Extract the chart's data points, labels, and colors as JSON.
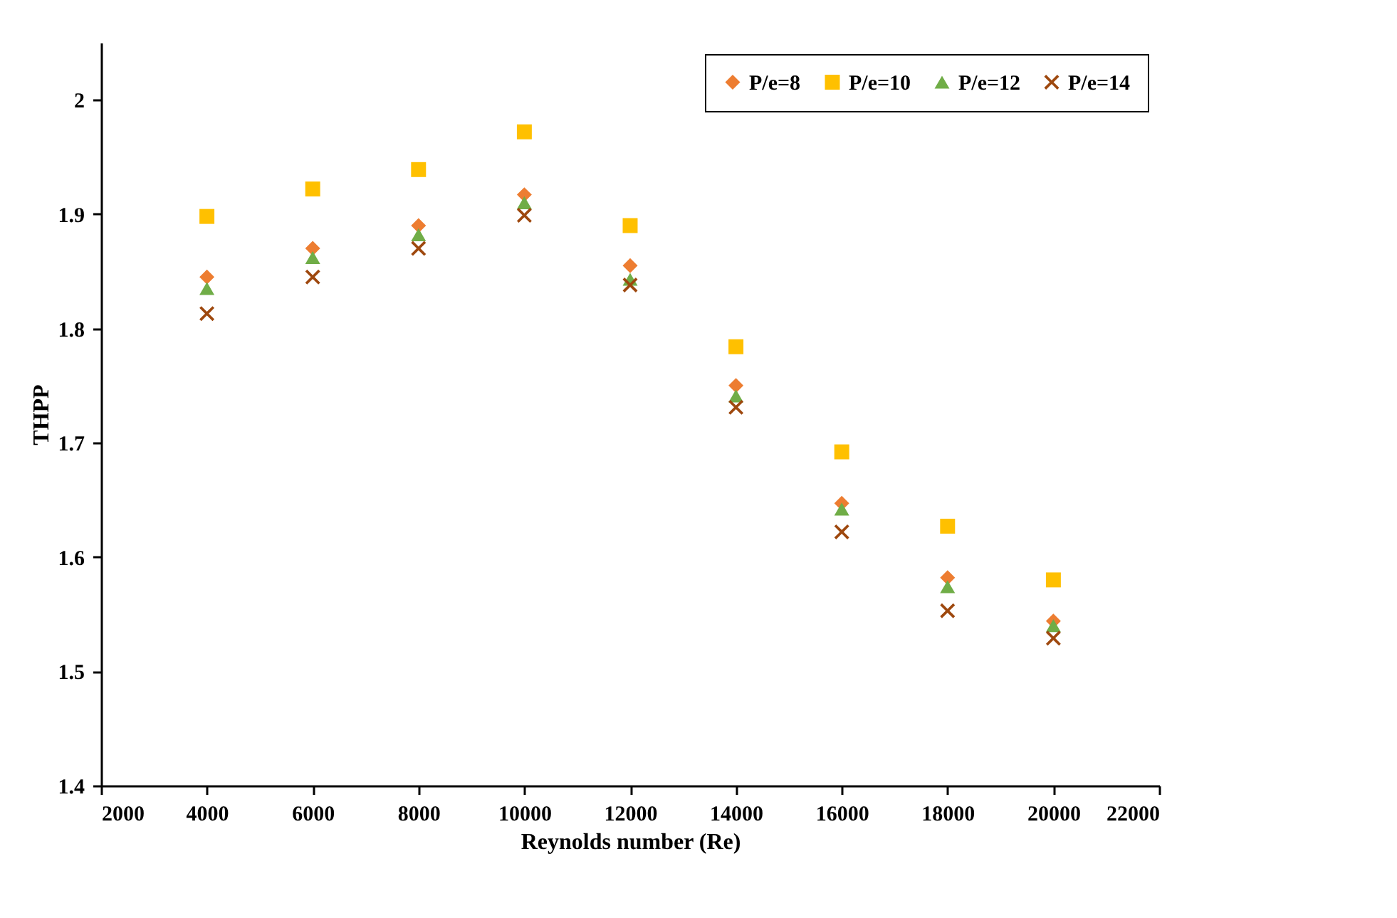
{
  "chart_data": {
    "type": "scatter",
    "xlabel": "Reynolds number (Re)",
    "ylabel": "THPP",
    "x": [
      4000,
      6000,
      8000,
      10000,
      12000,
      14000,
      16000,
      18000,
      20000
    ],
    "series": [
      {
        "name": "P/e=8",
        "color": "#ed7d31",
        "marker": "diamond",
        "values": [
          1.845,
          1.87,
          1.89,
          1.917,
          1.855,
          1.75,
          1.647,
          1.582,
          1.544
        ]
      },
      {
        "name": "P/e=10",
        "color": "#ffc000",
        "marker": "square",
        "values": [
          1.898,
          1.922,
          1.939,
          1.972,
          1.89,
          1.784,
          1.692,
          1.627,
          1.58
        ]
      },
      {
        "name": "P/e=12",
        "color": "#70ad47",
        "marker": "triangle",
        "values": [
          1.835,
          1.862,
          1.882,
          1.91,
          1.843,
          1.741,
          1.642,
          1.574,
          1.54
        ]
      },
      {
        "name": "P/e=14",
        "color": "#9e480e",
        "marker": "cross",
        "values": [
          1.813,
          1.845,
          1.87,
          1.899,
          1.838,
          1.731,
          1.622,
          1.553,
          1.529
        ]
      }
    ],
    "xlim": [
      2000,
      22000
    ],
    "xticks": [
      2000,
      4000,
      6000,
      8000,
      10000,
      12000,
      14000,
      16000,
      18000,
      20000,
      22000
    ],
    "ylim": [
      1.4,
      2.05
    ],
    "yticks": [
      1.4,
      1.5,
      1.6,
      1.7,
      1.8,
      1.9,
      2
    ],
    "grid": false,
    "legend": "top right"
  }
}
